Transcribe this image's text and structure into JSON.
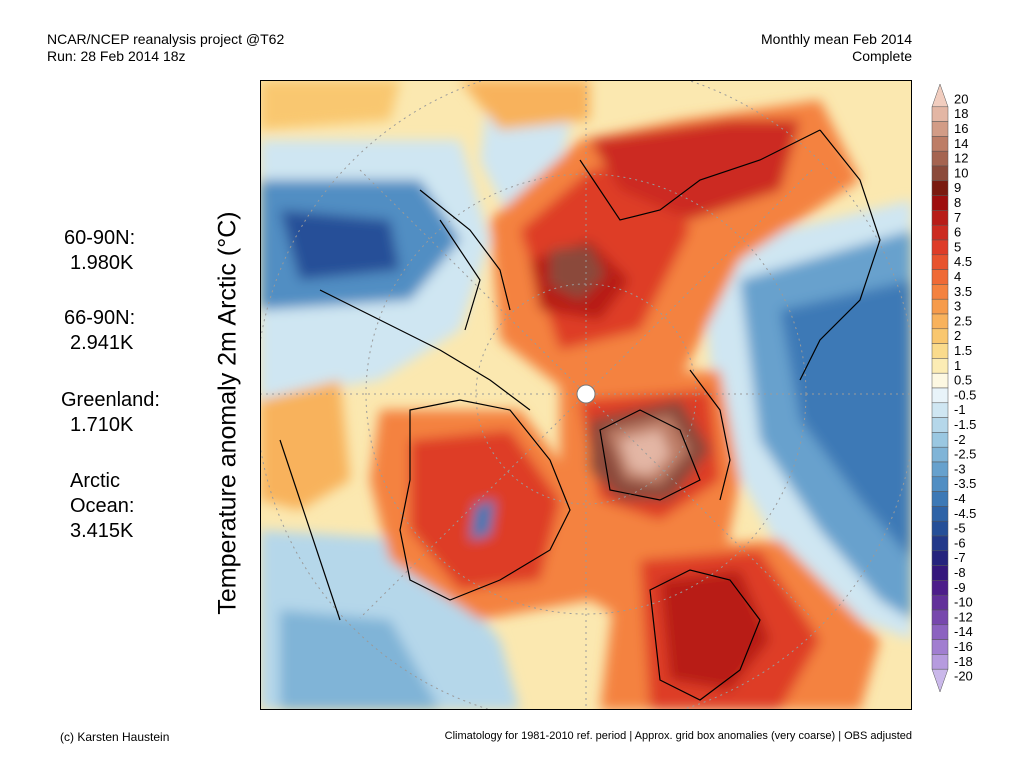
{
  "header": {
    "left_line1": "NCAR/NCEP reanalysis project @T62",
    "left_line2": "Run: 28 Feb 2014 18z",
    "right_line1": "Monthly mean Feb 2014",
    "right_line2": "Complete"
  },
  "y_label": "Temperature anomaly 2m Arctic (°C)",
  "stats": [
    {
      "label": "60-90N:",
      "value": "1.980K"
    },
    {
      "label": "66-90N:",
      "value": "2.941K"
    },
    {
      "label": "Greenland:",
      "value": "1.710K"
    },
    {
      "label_line1": "Arctic",
      "label_line2": "Ocean:",
      "value": "3.415K"
    }
  ],
  "colorbar": {
    "levels": [
      "20",
      "18",
      "16",
      "14",
      "12",
      "10",
      "9",
      "8",
      "7",
      "6",
      "5",
      "4.5",
      "4",
      "3.5",
      "3",
      "2.5",
      "2",
      "1.5",
      "1",
      "0.5",
      "-0.5",
      "-1",
      "-1.5",
      "-2",
      "-2.5",
      "-3",
      "-3.5",
      "-4",
      "-4.5",
      "-5",
      "-6",
      "-7",
      "-8",
      "-9",
      "-10",
      "-12",
      "-14",
      "-16",
      "-18",
      "-20"
    ],
    "colors": [
      "#f1cdbf",
      "#e3b6a4",
      "#d29c86",
      "#bd7d66",
      "#a56450",
      "#8b4a3a",
      "#7a1a10",
      "#9e0e0e",
      "#b81c18",
      "#cc2a20",
      "#de3c28",
      "#e8532e",
      "#ef6a36",
      "#f4823f",
      "#f69b4b",
      "#f8b25c",
      "#f9c76f",
      "#fadb8c",
      "#fcecb4",
      "#fdf8e2",
      "#e8f3f9",
      "#cfe6f2",
      "#b5d7ea",
      "#9ac7e1",
      "#80b4d7",
      "#67a1cd",
      "#518ec3",
      "#3d79b6",
      "#2e63a7",
      "#254f98",
      "#22388a",
      "#25237d",
      "#35177c",
      "#4d1d8a",
      "#62309a",
      "#7748ad",
      "#8c63c0",
      "#a17ed0",
      "#b69bde",
      "#cab8ea"
    ]
  },
  "footer": {
    "left": "(c) Karsten Haustein",
    "right": "Climatology for 1981-2010 ref. period | Approx. grid box anomalies (very coarse) | OBS adjusted"
  }
}
